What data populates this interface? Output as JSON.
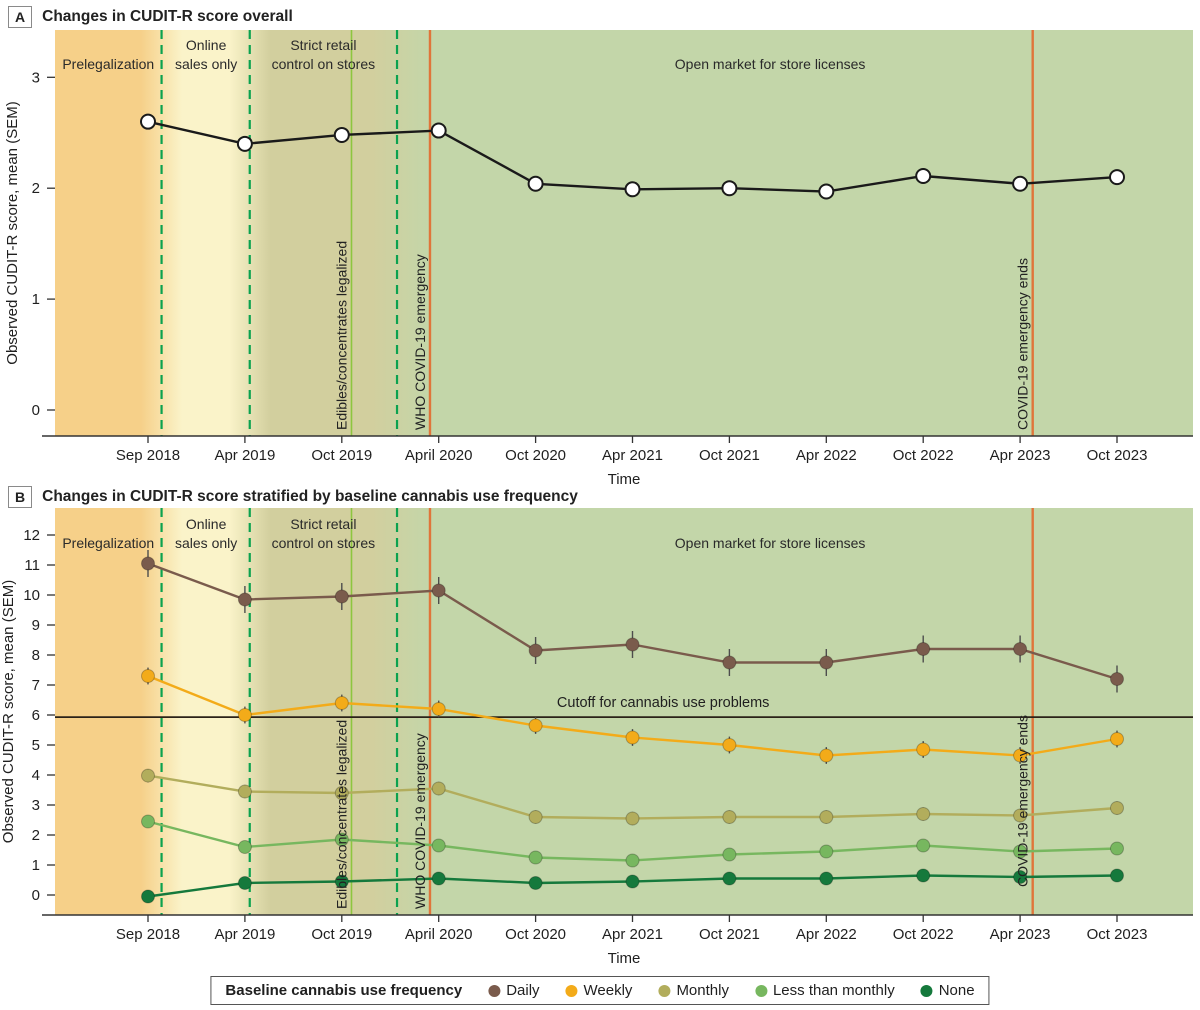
{
  "legend": {
    "title": "Baseline cannabis use frequency"
  },
  "timeline": {
    "periods": [
      {
        "label": "Prelegalization",
        "label_lines": [
          "Prelegalization"
        ],
        "label_t": -0.41,
        "bg": "#f6d089"
      },
      {
        "label": "Online sales only",
        "label_lines": [
          "Online",
          "sales only"
        ],
        "label_t": 0.6,
        "bg": "#faf3c9"
      },
      {
        "label": "Strict retail control on stores",
        "label_lines": [
          "Strict retail",
          "control on stores"
        ],
        "label_t": 1.81,
        "bg": "#d2cf9e"
      },
      {
        "label": "Open market for store licenses",
        "label_lines": [
          "Open market for store licenses"
        ],
        "label_t": 6.42,
        "bg": "#c3d6a9"
      }
    ],
    "boundaries_t": [
      0.14,
      1.05,
      2.57
    ],
    "boundary_color": "#0ba24f",
    "events": [
      {
        "label": "Edibles/concentrates legalized",
        "t": 2.1,
        "color": "#8dc63f",
        "width": 1.6
      },
      {
        "label": "WHO COVID-19 emergency",
        "t": 2.91,
        "color": "#e0753a",
        "width": 2.4
      },
      {
        "label": "COVID-19 emergency ends",
        "t": 9.13,
        "color": "#e0753a",
        "width": 2.4
      }
    ]
  },
  "chart_data": [
    {
      "type": "line",
      "panel": "A",
      "title": "Changes in CUDIT-R score overall",
      "xlabel": "Time",
      "ylabel": "Observed CUDIT-R score, mean (SEM)",
      "categories": [
        "Sep 2018",
        "Apr 2019",
        "Oct 2019",
        "April 2020",
        "Oct 2020",
        "Apr 2021",
        "Oct 2021",
        "Apr 2022",
        "Oct 2022",
        "Apr 2023",
        "Oct 2023"
      ],
      "yticks": [
        0,
        1,
        2,
        3
      ],
      "ylim": [
        -0.24,
        3.43
      ],
      "grid": false,
      "legend_position": "none",
      "series": [
        {
          "name": "Overall",
          "values": [
            2.6,
            2.4,
            2.48,
            2.52,
            2.04,
            1.99,
            2.0,
            1.97,
            2.11,
            2.04,
            2.1
          ],
          "sem": 0.07,
          "color": "#1a1a1a",
          "marker": "open-circle",
          "marker_fill": "#ffffff"
        }
      ]
    },
    {
      "type": "line",
      "panel": "B",
      "title": "Changes in CUDIT-R score stratified by baseline cannabis use frequency",
      "xlabel": "Time",
      "ylabel": "Observed CUDIT-R score, mean (SEM)",
      "categories": [
        "Sep 2018",
        "Apr 2019",
        "Oct 2019",
        "April 2020",
        "Oct 2020",
        "Apr 2021",
        "Oct 2021",
        "Apr 2022",
        "Oct 2022",
        "Apr 2023",
        "Oct 2023"
      ],
      "yticks": [
        0,
        1,
        2,
        3,
        4,
        5,
        6,
        7,
        8,
        9,
        10,
        11,
        12
      ],
      "ylim": [
        -0.67,
        12.9
      ],
      "grid": false,
      "legend_position": "bottom",
      "cutoff": {
        "value": 5.93,
        "label": "Cutoff for cannabis use problems",
        "label_t": 4.22,
        "color": "#2b2218"
      },
      "series": [
        {
          "name": "Daily",
          "values": [
            11.05,
            9.85,
            9.95,
            10.15,
            8.15,
            8.35,
            7.75,
            7.75,
            8.2,
            8.2,
            7.2
          ],
          "sem": 0.45,
          "color": "#7a5b4c",
          "marker": "circle"
        },
        {
          "name": "Weekly",
          "values": [
            7.3,
            6.0,
            6.4,
            6.2,
            5.65,
            5.25,
            5.0,
            4.65,
            4.85,
            4.65,
            5.2
          ],
          "sem": 0.28,
          "color": "#f3ab19",
          "marker": "circle"
        },
        {
          "name": "Monthly",
          "values": [
            3.98,
            3.45,
            3.4,
            3.55,
            2.6,
            2.55,
            2.6,
            2.6,
            2.7,
            2.65,
            2.9
          ],
          "sem": 0.22,
          "color": "#b2ad5c",
          "marker": "circle"
        },
        {
          "name": "Less than monthly",
          "values": [
            2.45,
            1.6,
            1.85,
            1.65,
            1.25,
            1.15,
            1.35,
            1.45,
            1.65,
            1.45,
            1.55
          ],
          "sem": 0.16,
          "color": "#77b75f",
          "marker": "circle"
        },
        {
          "name": "None",
          "values": [
            -0.05,
            0.4,
            0.45,
            0.55,
            0.4,
            0.45,
            0.55,
            0.55,
            0.65,
            0.6,
            0.65
          ],
          "sem": 0.1,
          "color": "#15793c",
          "marker": "circle"
        }
      ]
    }
  ],
  "colors": {
    "axis": "#333333",
    "text": "#1f1f1f",
    "error_bar": "#4d4d4d"
  }
}
